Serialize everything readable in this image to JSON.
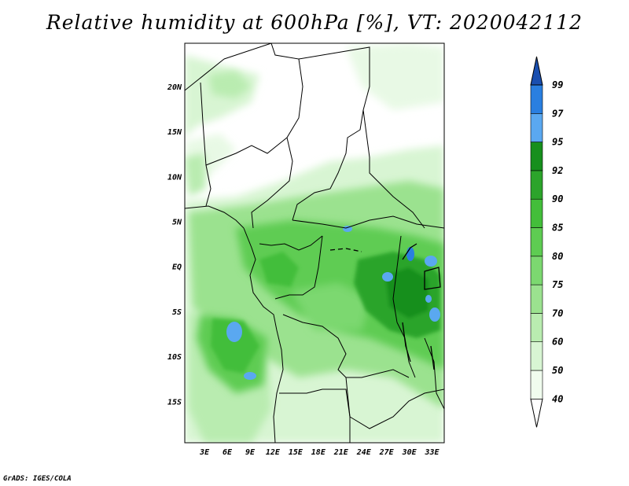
{
  "title": "Relative humidity at 600hPa [%], VT: 2020042112",
  "credit": "GrADS: IGES/COLA",
  "map": {
    "lat_labels": [
      {
        "text": "20N",
        "lat": 20
      },
      {
        "text": "15N",
        "lat": 15
      },
      {
        "text": "10N",
        "lat": 10
      },
      {
        "text": "5N",
        "lat": 5
      },
      {
        "text": "EQ",
        "lat": 0
      },
      {
        "text": "5S",
        "lat": -5
      },
      {
        "text": "10S",
        "lat": -10
      },
      {
        "text": "15S",
        "lat": -15
      }
    ],
    "lon_labels": [
      {
        "text": "3E",
        "lon": 3
      },
      {
        "text": "6E",
        "lon": 6
      },
      {
        "text": "9E",
        "lon": 9
      },
      {
        "text": "12E",
        "lon": 12
      },
      {
        "text": "15E",
        "lon": 15
      },
      {
        "text": "18E",
        "lon": 18
      },
      {
        "text": "21E",
        "lon": 21
      },
      {
        "text": "24E",
        "lon": 24
      },
      {
        "text": "27E",
        "lon": 27
      },
      {
        "text": "30E",
        "lon": 30
      },
      {
        "text": "33E",
        "lon": 33
      }
    ],
    "lon_range": [
      0.4,
      34.6
    ],
    "lat_range": [
      -19.6,
      24.8
    ]
  },
  "colorbar": {
    "levels": [
      "40",
      "50",
      "60",
      "70",
      "75",
      "80",
      "85",
      "90",
      "92",
      "95",
      "97",
      "99"
    ],
    "colors": [
      "#f0fcee",
      "#d8f5d3",
      "#b9ecb0",
      "#9be28f",
      "#7cd870",
      "#5ecc52",
      "#43be3a",
      "#2ca42b",
      "#178f1d",
      "#5aa8f0",
      "#2a7fe0",
      "#1a4fb0"
    ]
  }
}
